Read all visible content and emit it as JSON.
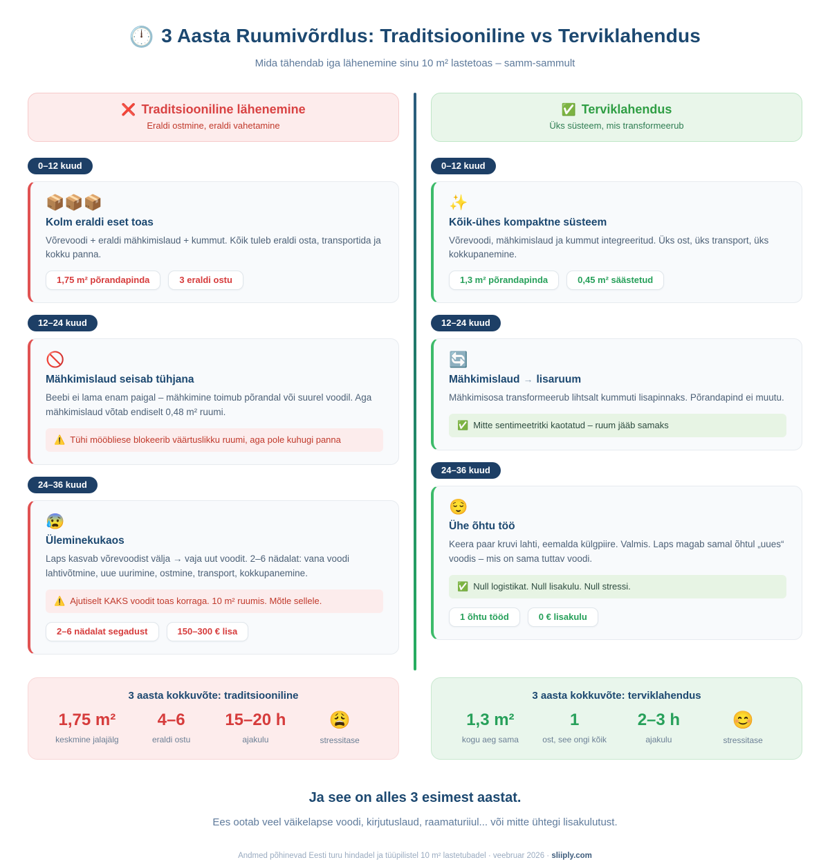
{
  "page": {
    "title": "3 Aasta Ruumivõrdlus: Traditsiooniline vs Terviklahendus",
    "title_icon": "🕛",
    "subtitle": "Mida tähendab iga lähenemine sinu 10 m² lastetoas – samm-sammult"
  },
  "left": {
    "header": {
      "icon": "❌",
      "title": "Traditsiooniline lähenemine",
      "subtitle": "Eraldi ostmine, eraldi vahetamine"
    },
    "phases": [
      {
        "badge": "0–12 kuud",
        "icon": "📦📦📦",
        "title": "Kolm eraldi eset toas",
        "body": "Võrevoodi + eraldi mähkimislaud + kummut. Kõik tuleb eraldi osta, transportida ja kokku panna.",
        "tags": [
          "1,75 m² põrandapinda",
          "3 eraldi ostu"
        ]
      },
      {
        "badge": "12–24 kuud",
        "icon": "🚫",
        "title": "Mähkimislaud seisab tühjana",
        "body": "Beebi ei lama enam paigal – mähkimine toimub põrandal või suurel voodil. Aga mähkimislaud võtab endiselt 0,48 m² ruumi.",
        "note_icon": "⚠️",
        "note": "Tühi mööbliese blokeerib väärtuslikku ruumi, aga pole kuhugi panna"
      },
      {
        "badge": "24–36 kuud",
        "icon": "😰",
        "title": "Üleminekukaos",
        "body": "Laps kasvab võrevoodist välja → vaja uut voodit. 2–6 nädalat: vana voodi lahtivõtmine, uue uurimine, ostmine, transport, kokkupanemine.",
        "note_icon": "⚠️",
        "note": "Ajutiselt KAKS voodit toas korraga. 10 m² ruumis. Mõtle sellele.",
        "tags": [
          "2–6 nädalat segadust",
          "150–300 € lisa"
        ]
      }
    ],
    "summary": {
      "title": "3 aasta kokkuvõte: traditsiooniline",
      "stats": [
        {
          "value": "1,75 m²",
          "label": "keskmine jalajälg"
        },
        {
          "value": "4–6",
          "label": "eraldi ostu"
        },
        {
          "value": "15–20 h",
          "label": "ajakulu"
        },
        {
          "value": "😩",
          "label": "stressitase"
        }
      ]
    }
  },
  "right": {
    "header": {
      "icon": "✅",
      "title": "Terviklahendus",
      "subtitle": "Üks süsteem, mis transformeerub"
    },
    "phases": [
      {
        "badge": "0–12 kuud",
        "icon": "✨",
        "title": "Kõik-ühes kompaktne süsteem",
        "body": "Võrevoodi, mähkimislaud ja kummut integreeritud. Üks ost, üks transport, üks kokkupanemine.",
        "tags": [
          "1,3 m² põrandapinda",
          "0,45 m² säästetud"
        ]
      },
      {
        "badge": "12–24 kuud",
        "icon": "🔄",
        "title_pre": "Mähkimislaud",
        "title_arrow": "→",
        "title_post": "lisaruum",
        "body": "Mähkimisosa transformeerub lihtsalt kummuti lisapinnaks. Põrandapind ei muutu.",
        "note_icon": "✅",
        "note": "Mitte sentimeetritki kaotatud – ruum jääb samaks"
      },
      {
        "badge": "24–36 kuud",
        "icon": "😌",
        "title": "Ühe õhtu töö",
        "body": "Keera paar kruvi lahti, eemalda külgpiire. Valmis. Laps magab samal õhtul „uues“ voodis – mis on sama tuttav voodi.",
        "note_icon": "✅",
        "note": "Null logistikat. Null lisakulu. Null stressi.",
        "tags": [
          "1 õhtu tööd",
          "0 € lisakulu"
        ]
      }
    ],
    "summary": {
      "title": "3 aasta kokkuvõte: terviklahendus",
      "stats": [
        {
          "value": "1,3 m²",
          "label": "kogu aeg sama"
        },
        {
          "value": "1",
          "label": "ost, see ongi kõik"
        },
        {
          "value": "2–3 h",
          "label": "ajakulu"
        },
        {
          "value": "😊",
          "label": "stressitase"
        }
      ]
    }
  },
  "footer": {
    "headline": "Ja see on alles 3 esimest aastat.",
    "subline": "Ees ootab veel väikelapse voodi, kirjutuslaud, raamaturiiul... või mitte ühtegi lisakulutust.",
    "credits": "Andmed põhinevad Eesti turu hindadel ja tüüpilistel 10 m² lastetubadel · veebruar 2026 · ",
    "brand": "sliiply.com"
  },
  "colors": {
    "navy": "#1c4870",
    "badge_navy": "#1d3f66",
    "accent_red": "#d94343",
    "accent_green": "#2f9e44",
    "divider_top": "#2b5b7d",
    "divider_bottom": "#27ae60"
  }
}
